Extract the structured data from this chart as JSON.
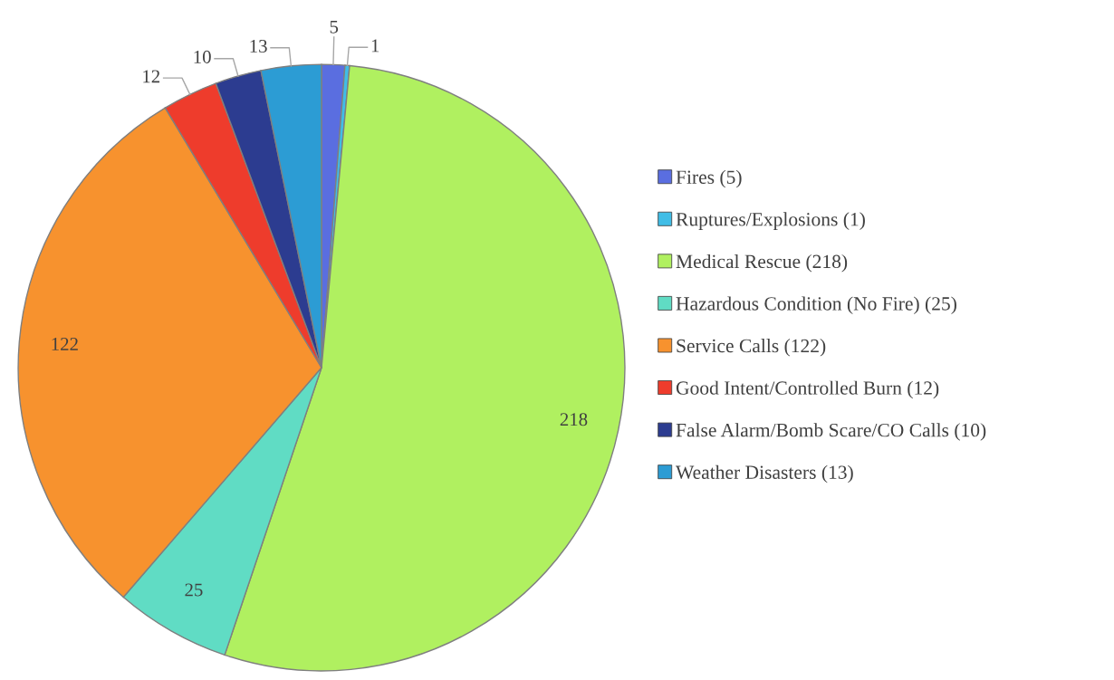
{
  "chart_data": {
    "type": "pie",
    "categories": [
      "Fires (5)",
      "Ruptures/Explosions (1)",
      "Medical Rescue (218)",
      "Hazardous Condition (No Fire) (25)",
      "Service Calls (122)",
      "Good Intent/Controlled Burn (12)",
      "False Alarm/Bomb Scare/CO Calls (10)",
      "Weather Disasters (13)"
    ],
    "values": [
      5,
      1,
      218,
      25,
      122,
      12,
      10,
      13
    ],
    "colors": [
      "#5a6ee0",
      "#40bde6",
      "#b0f060",
      "#60dcc4",
      "#f7922e",
      "#ee3c2c",
      "#2c3c90",
      "#2c9cd4"
    ],
    "data_labels": true,
    "legend": "right"
  }
}
